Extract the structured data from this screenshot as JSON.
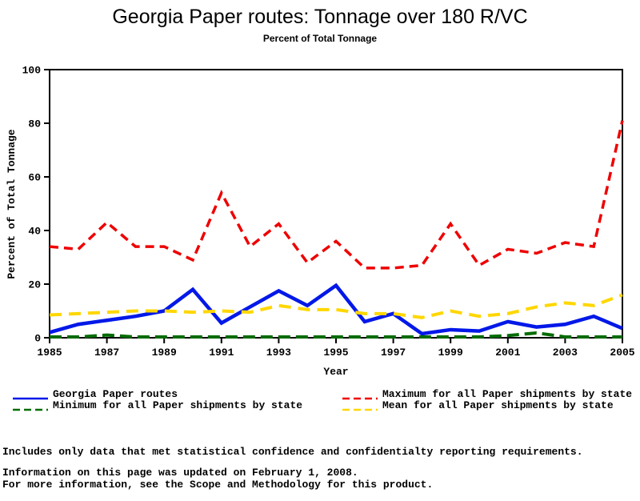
{
  "title": "Georgia Paper routes: Tonnage over 180 R/VC",
  "subtitle": "Percent of Total Tonnage",
  "chart_data": {
    "type": "line",
    "x": [
      1985,
      1986,
      1987,
      1988,
      1989,
      1990,
      1991,
      1992,
      1993,
      1994,
      1995,
      1996,
      1997,
      1998,
      1999,
      2000,
      2001,
      2002,
      2003,
      2004,
      2005
    ],
    "x_tick_labels": [
      "1985",
      "1987",
      "1989",
      "1991",
      "1993",
      "1995",
      "1997",
      "1999",
      "2001",
      "2003",
      "2005"
    ],
    "y_ticks": [
      0,
      20,
      40,
      60,
      80,
      100
    ],
    "xlim": [
      1985,
      2005
    ],
    "ylim": [
      0,
      100
    ],
    "xlabel": "Year",
    "ylabel": "Percent of Total Tonnage",
    "grid": false,
    "legend_position": "bottom",
    "series": [
      {
        "name": "Georgia Paper routes",
        "color": "#0018E8",
        "style": "solid",
        "values": [
          2,
          5,
          6.5,
          8,
          10,
          18,
          5.5,
          11.5,
          17.5,
          12,
          19.5,
          6,
          9,
          1.5,
          3,
          2.5,
          6,
          4,
          5,
          8,
          3.5
        ]
      },
      {
        "name": "Minimum for all Paper shipments by state",
        "color": "#006B00",
        "style": "dashed",
        "values": [
          0.3,
          0.3,
          1,
          0.3,
          0.3,
          0.3,
          0.3,
          0.3,
          0.3,
          0.3,
          0.3,
          0.3,
          0.3,
          0.3,
          0.3,
          0.3,
          0.8,
          1.8,
          0.3,
          0.3,
          0.3
        ]
      },
      {
        "name": "Maximum for all Paper shipments by state",
        "color": "#EE0000",
        "style": "dashed",
        "values": [
          34,
          33,
          43,
          34,
          34,
          29,
          54,
          34,
          42.5,
          28,
          36,
          26,
          26,
          27,
          42.5,
          27,
          33,
          31.5,
          35.5,
          34,
          81
        ]
      },
      {
        "name": "Mean for all Paper shipments by state",
        "color": "#FFD700",
        "style": "dashed",
        "values": [
          8.5,
          9,
          9.5,
          10,
          10,
          9.5,
          10,
          9.5,
          12,
          10.5,
          10.5,
          9,
          9,
          7.5,
          10,
          8,
          9,
          11.5,
          13,
          12,
          16
        ]
      }
    ]
  },
  "legend": {
    "order": [
      0,
      2,
      1,
      3
    ]
  },
  "footer": {
    "line1": "Includes only data that met statistical confidence and confidentialty reporting requirements.",
    "line2": "For more information, see the Scope and Methodology for this product.",
    "updated": "Information on this page was updated on February 1, 2008."
  }
}
